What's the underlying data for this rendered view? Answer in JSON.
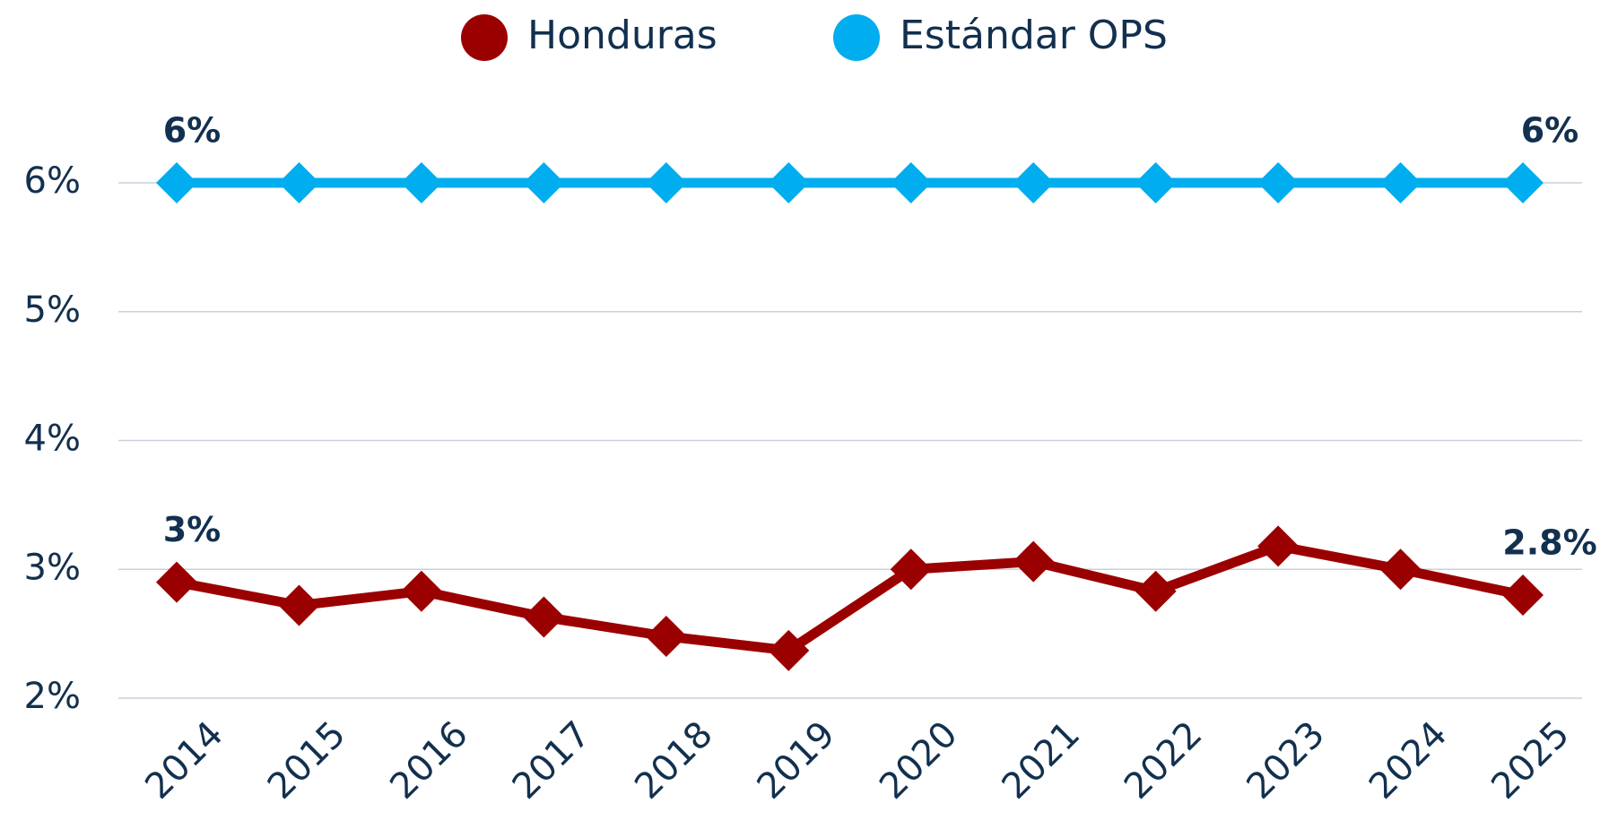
{
  "chart_data": {
    "type": "line",
    "categories": [
      "2014",
      "2015",
      "2016",
      "2017",
      "2018",
      "2019",
      "2020",
      "2021",
      "2022",
      "2023",
      "2024",
      "2025"
    ],
    "series": [
      {
        "name": "Honduras",
        "color": "#9b0000",
        "values": [
          2.9,
          2.72,
          2.83,
          2.63,
          2.48,
          2.37,
          3.0,
          3.06,
          2.83,
          3.18,
          3.0,
          2.8
        ],
        "value_labels": [
          "3%",
          null,
          null,
          null,
          null,
          null,
          null,
          null,
          null,
          null,
          null,
          "2.8%"
        ]
      },
      {
        "name": "Estándar OPS",
        "color": "#00adef",
        "values": [
          6,
          6,
          6,
          6,
          6,
          6,
          6,
          6,
          6,
          6,
          6,
          6
        ],
        "value_labels": [
          "6%",
          null,
          null,
          null,
          null,
          null,
          null,
          null,
          null,
          null,
          null,
          "6%"
        ]
      }
    ],
    "ylim": [
      2,
      6
    ],
    "yticks": [
      {
        "value": 2,
        "label": "2%"
      },
      {
        "value": 3,
        "label": "3%"
      },
      {
        "value": 4,
        "label": "4%"
      },
      {
        "value": 5,
        "label": "5%"
      },
      {
        "value": 6,
        "label": "6%"
      }
    ],
    "grid": true,
    "legend": "top"
  }
}
